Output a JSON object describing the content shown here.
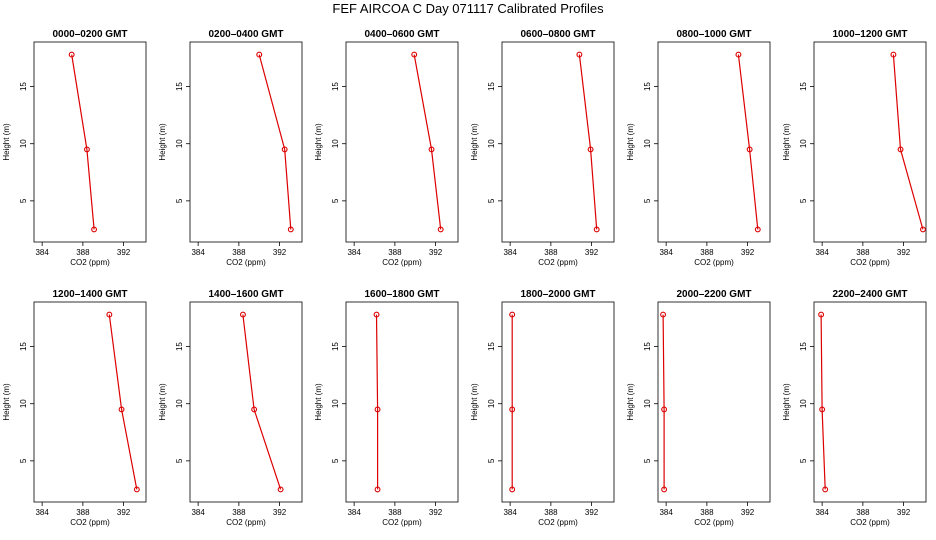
{
  "title": "FEF AIRCOA C  Day 071117  Calibrated Profiles",
  "colors": {
    "series": "#dd0000",
    "frame": "#000000"
  },
  "chart_data": [
    {
      "type": "line",
      "title": "0000–0200 GMT",
      "xlabel": "CO2 (ppm)",
      "ylabel": "Height (m)",
      "xlim": [
        383.2,
        394.2
      ],
      "ylim": [
        1.4,
        18.9
      ],
      "xticks": [
        384,
        388,
        392
      ],
      "yticks": [
        5,
        10,
        15
      ],
      "series": [
        {
          "x": [
            389.1,
            388.4,
            386.9
          ],
          "y": [
            2.5,
            9.5,
            17.8
          ]
        }
      ]
    },
    {
      "type": "line",
      "title": "0200–0400 GMT",
      "xlabel": "CO2 (ppm)",
      "ylabel": "Height (m)",
      "xlim": [
        383.2,
        394.2
      ],
      "ylim": [
        1.4,
        18.9
      ],
      "xticks": [
        384,
        388,
        392
      ],
      "yticks": [
        5,
        10,
        15
      ],
      "series": [
        {
          "x": [
            393.1,
            392.5,
            390.0
          ],
          "y": [
            2.5,
            9.5,
            17.8
          ]
        }
      ]
    },
    {
      "type": "line",
      "title": "0400–0600 GMT",
      "xlabel": "CO2 (ppm)",
      "ylabel": "Height (m)",
      "xlim": [
        383.2,
        394.2
      ],
      "ylim": [
        1.4,
        18.9
      ],
      "xticks": [
        384,
        388,
        392
      ],
      "yticks": [
        5,
        10,
        15
      ],
      "series": [
        {
          "x": [
            392.5,
            391.6,
            389.9
          ],
          "y": [
            2.5,
            9.5,
            17.8
          ]
        }
      ]
    },
    {
      "type": "line",
      "title": "0600–0800 GMT",
      "xlabel": "CO2 (ppm)",
      "ylabel": "Height (m)",
      "xlim": [
        383.2,
        394.2
      ],
      "ylim": [
        1.4,
        18.9
      ],
      "xticks": [
        384,
        388,
        392
      ],
      "yticks": [
        5,
        10,
        15
      ],
      "series": [
        {
          "x": [
            392.5,
            391.9,
            390.8
          ],
          "y": [
            2.5,
            9.5,
            17.8
          ]
        }
      ]
    },
    {
      "type": "line",
      "title": "0800–1000 GMT",
      "xlabel": "CO2 (ppm)",
      "ylabel": "Height (m)",
      "xlim": [
        383.2,
        394.2
      ],
      "ylim": [
        1.4,
        18.9
      ],
      "xticks": [
        384,
        388,
        392
      ],
      "yticks": [
        5,
        10,
        15
      ],
      "series": [
        {
          "x": [
            393.0,
            392.2,
            391.1
          ],
          "y": [
            2.5,
            9.5,
            17.8
          ]
        }
      ]
    },
    {
      "type": "line",
      "title": "1000–1200 GMT",
      "xlabel": "CO2 (ppm)",
      "ylabel": "Height (m)",
      "xlim": [
        383.2,
        394.2
      ],
      "ylim": [
        1.4,
        18.9
      ],
      "xticks": [
        384,
        388,
        392
      ],
      "yticks": [
        5,
        10,
        15
      ],
      "series": [
        {
          "x": [
            393.9,
            391.7,
            391.0
          ],
          "y": [
            2.5,
            9.5,
            17.8
          ]
        }
      ]
    },
    {
      "type": "line",
      "title": "1200–1400 GMT",
      "xlabel": "CO2 (ppm)",
      "ylabel": "Height (m)",
      "xlim": [
        383.2,
        394.2
      ],
      "ylim": [
        1.4,
        18.9
      ],
      "xticks": [
        384,
        388,
        392
      ],
      "yticks": [
        5,
        10,
        15
      ],
      "series": [
        {
          "x": [
            393.3,
            391.8,
            390.6
          ],
          "y": [
            2.5,
            9.5,
            17.8
          ]
        }
      ]
    },
    {
      "type": "line",
      "title": "1400–1600 GMT",
      "xlabel": "CO2 (ppm)",
      "ylabel": "Height (m)",
      "xlim": [
        383.2,
        394.2
      ],
      "ylim": [
        1.4,
        18.9
      ],
      "xticks": [
        384,
        388,
        392
      ],
      "yticks": [
        5,
        10,
        15
      ],
      "series": [
        {
          "x": [
            392.1,
            389.5,
            388.4
          ],
          "y": [
            2.5,
            9.5,
            17.8
          ]
        }
      ]
    },
    {
      "type": "line",
      "title": "1600–1800 GMT",
      "xlabel": "CO2 (ppm)",
      "ylabel": "Height (m)",
      "xlim": [
        383.2,
        394.2
      ],
      "ylim": [
        1.4,
        18.9
      ],
      "xticks": [
        384,
        388,
        392
      ],
      "yticks": [
        5,
        10,
        15
      ],
      "series": [
        {
          "x": [
            386.3,
            386.3,
            386.2
          ],
          "y": [
            2.5,
            9.5,
            17.8
          ]
        }
      ]
    },
    {
      "type": "line",
      "title": "1800–2000 GMT",
      "xlabel": "CO2 (ppm)",
      "ylabel": "Height (m)",
      "xlim": [
        383.2,
        394.2
      ],
      "ylim": [
        1.4,
        18.9
      ],
      "xticks": [
        384,
        388,
        392
      ],
      "yticks": [
        5,
        10,
        15
      ],
      "series": [
        {
          "x": [
            384.2,
            384.2,
            384.2
          ],
          "y": [
            2.5,
            9.5,
            17.8
          ]
        }
      ]
    },
    {
      "type": "line",
      "title": "2000–2200 GMT",
      "xlabel": "CO2 (ppm)",
      "ylabel": "Height (m)",
      "xlim": [
        383.2,
        394.2
      ],
      "ylim": [
        1.4,
        18.9
      ],
      "xticks": [
        384,
        388,
        392
      ],
      "yticks": [
        5,
        10,
        15
      ],
      "series": [
        {
          "x": [
            383.8,
            383.8,
            383.7
          ],
          "y": [
            2.5,
            9.5,
            17.8
          ]
        }
      ]
    },
    {
      "type": "line",
      "title": "2200–2400 GMT",
      "xlabel": "CO2 (ppm)",
      "ylabel": "Height (m)",
      "xlim": [
        383.2,
        394.2
      ],
      "ylim": [
        1.4,
        18.9
      ],
      "xticks": [
        384,
        388,
        392
      ],
      "yticks": [
        5,
        10,
        15
      ],
      "series": [
        {
          "x": [
            384.3,
            384.0,
            383.9
          ],
          "y": [
            2.5,
            9.5,
            17.8
          ]
        }
      ]
    }
  ]
}
